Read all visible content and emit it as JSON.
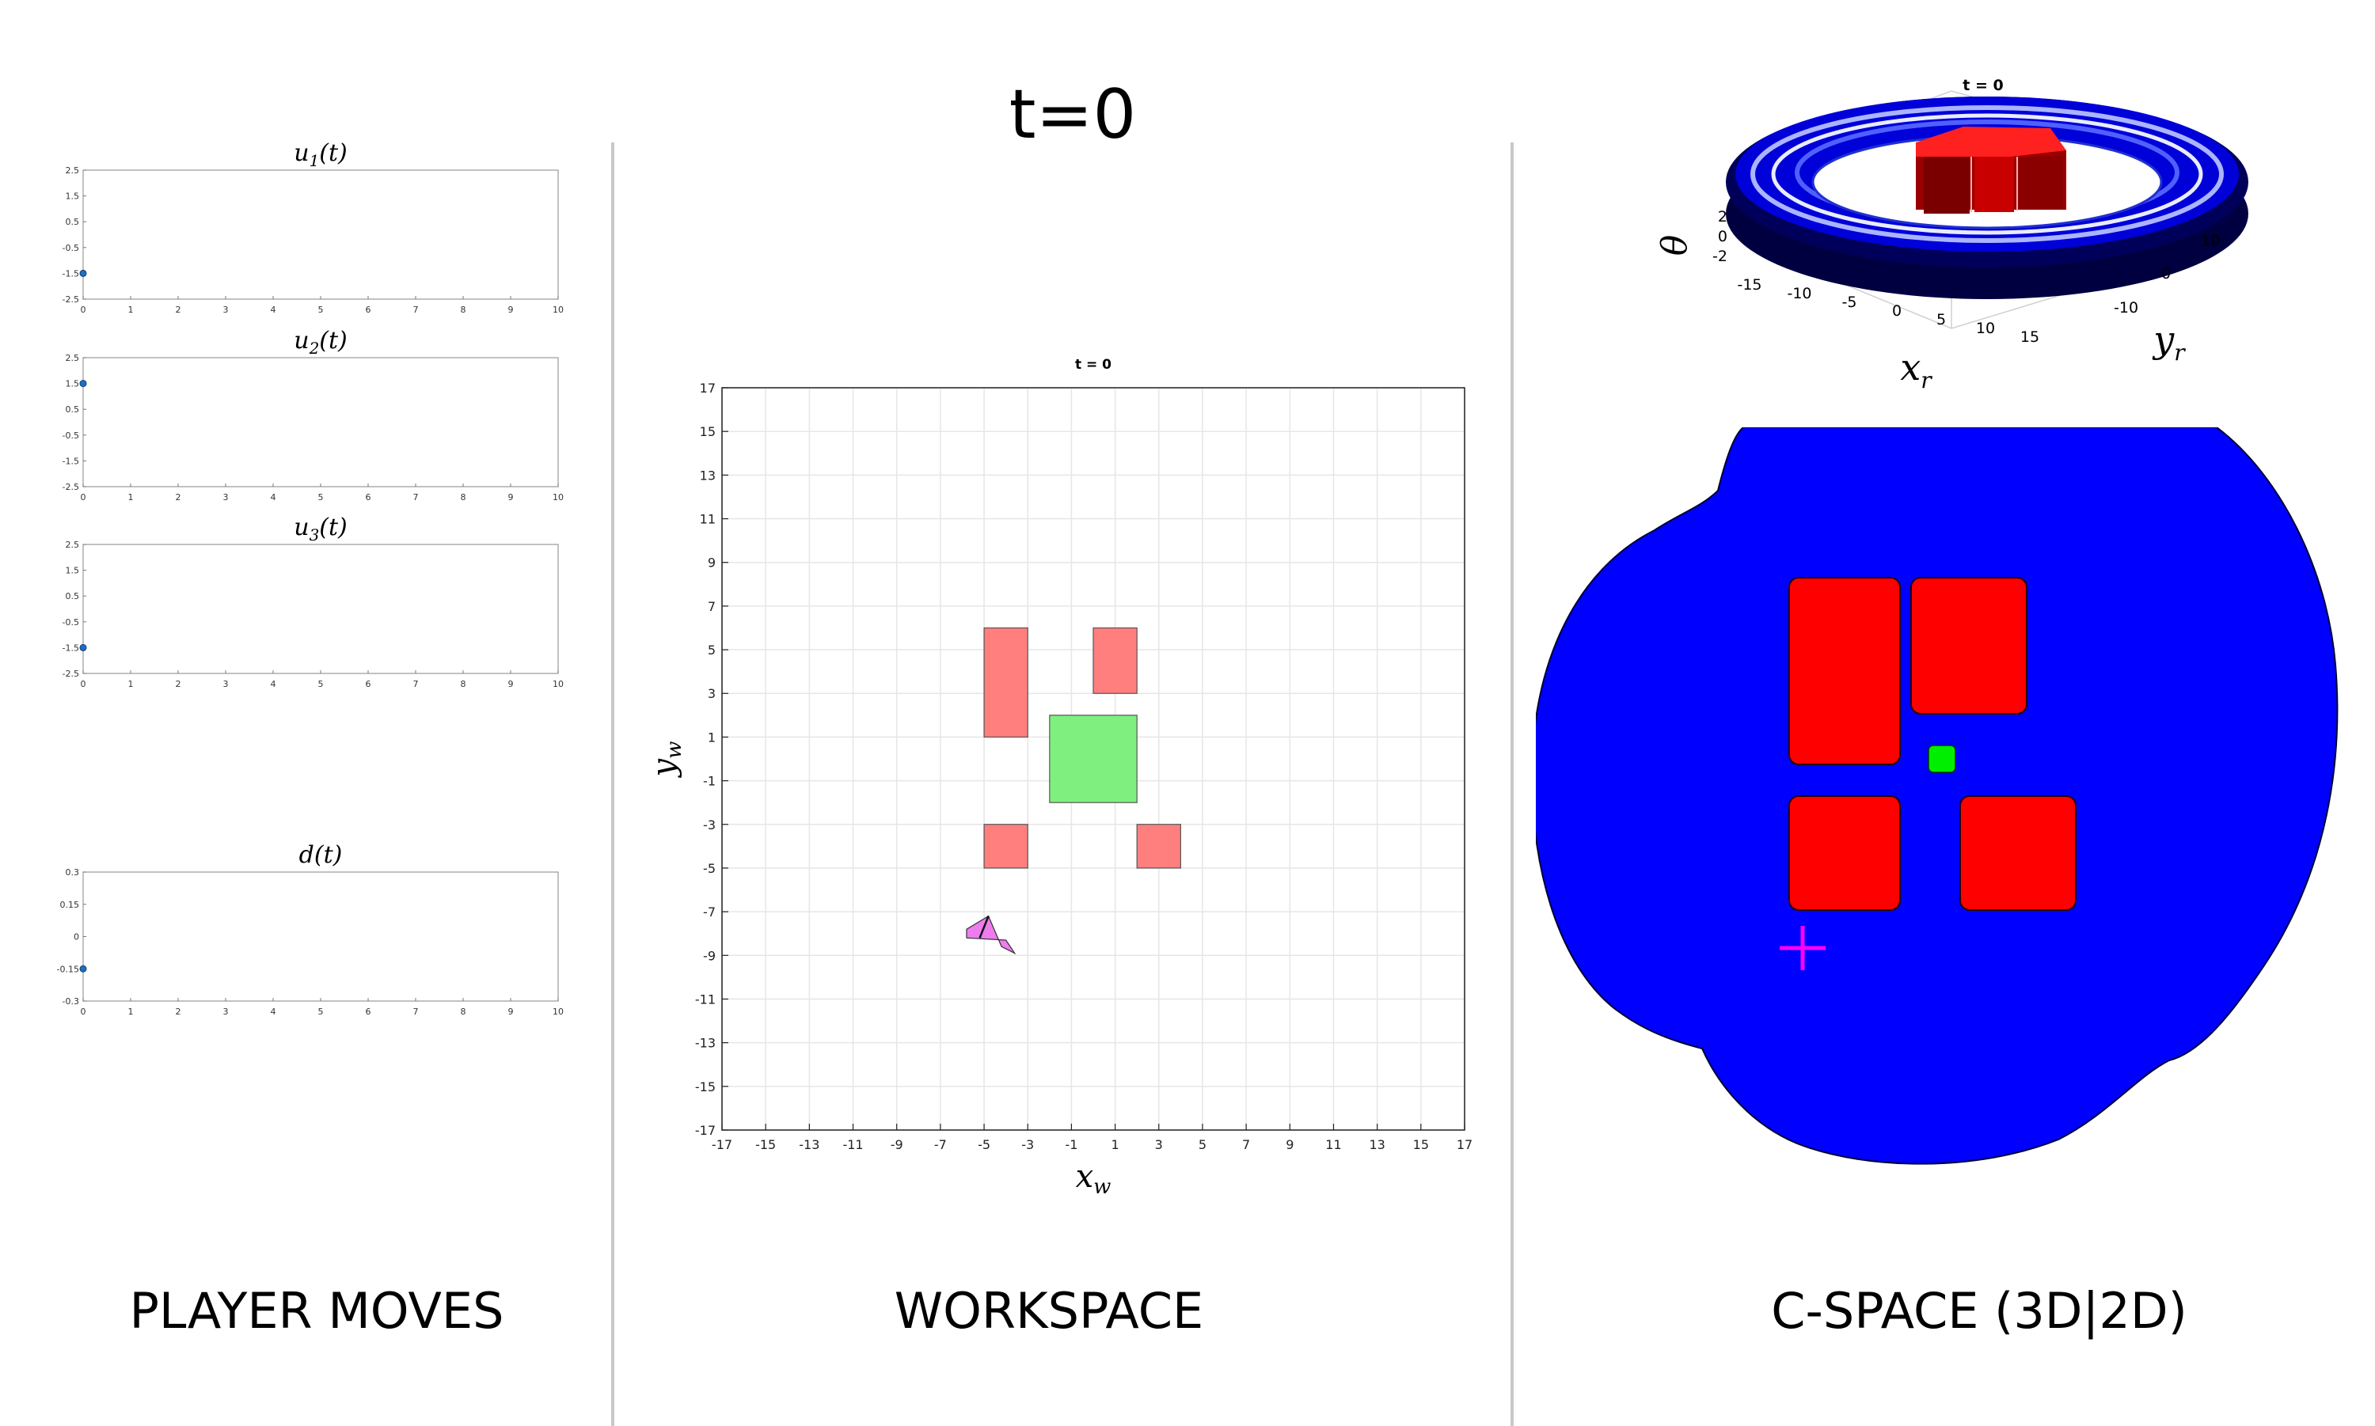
{
  "main_title": "t=0",
  "sections": {
    "player": "PLAYER MOVES",
    "workspace": "WORKSPACE",
    "cspace": "C-SPACE (3D|2D)"
  },
  "colors": {
    "obstacle_light": "#ff7f7f",
    "goal_light": "#7fef7f",
    "robot": "#ee7cee",
    "cspace_blue": "#0000ff",
    "cspace_red": "#ff0000",
    "cspace_goal": "#00ee00",
    "marker_magenta": "#ff00ff",
    "dark_navy": "#000040",
    "series_point": "#1f6fbf"
  },
  "chart_data": [
    {
      "type": "scatter",
      "title": "u1(t)",
      "title_base": "u",
      "title_sub": "1",
      "title_arg": "(t)",
      "x": [
        0
      ],
      "y": [
        -1.5
      ],
      "xlim": [
        0,
        10
      ],
      "ylim": [
        -2.5,
        2.5
      ],
      "xticks": [
        "0",
        "1",
        "2",
        "3",
        "4",
        "5",
        "6",
        "7",
        "8",
        "9",
        "10"
      ],
      "yticks": [
        "2.5",
        "1.5",
        "0.5",
        "-0.5",
        "-1.5",
        "-2.5"
      ],
      "ytick_values": [
        2.5,
        1.5,
        0.5,
        -0.5,
        -1.5,
        -2.5
      ]
    },
    {
      "type": "scatter",
      "title": "u2(t)",
      "title_base": "u",
      "title_sub": "2",
      "title_arg": "(t)",
      "x": [
        0
      ],
      "y": [
        1.5
      ],
      "xlim": [
        0,
        10
      ],
      "ylim": [
        -2.5,
        2.5
      ],
      "xticks": [
        "0",
        "1",
        "2",
        "3",
        "4",
        "5",
        "6",
        "7",
        "8",
        "9",
        "10"
      ],
      "yticks": [
        "2.5",
        "1.5",
        "0.5",
        "-0.5",
        "-1.5",
        "-2.5"
      ],
      "ytick_values": [
        2.5,
        1.5,
        0.5,
        -0.5,
        -1.5,
        -2.5
      ]
    },
    {
      "type": "scatter",
      "title": "u3(t)",
      "title_base": "u",
      "title_sub": "3",
      "title_arg": "(t)",
      "x": [
        0
      ],
      "y": [
        -1.5
      ],
      "xlim": [
        0,
        10
      ],
      "ylim": [
        -2.5,
        2.5
      ],
      "xticks": [
        "0",
        "1",
        "2",
        "3",
        "4",
        "5",
        "6",
        "7",
        "8",
        "9",
        "10"
      ],
      "yticks": [
        "2.5",
        "1.5",
        "0.5",
        "-0.5",
        "-1.5",
        "-2.5"
      ],
      "ytick_values": [
        2.5,
        1.5,
        0.5,
        -0.5,
        -1.5,
        -2.5
      ]
    },
    {
      "type": "scatter",
      "title": "d(t)",
      "title_base": "d",
      "title_sub": "",
      "title_arg": "(t)",
      "x": [
        0
      ],
      "y": [
        -0.15
      ],
      "xlim": [
        0,
        10
      ],
      "ylim": [
        -0.3,
        0.3
      ],
      "xticks": [
        "0",
        "1",
        "2",
        "3",
        "4",
        "5",
        "6",
        "7",
        "8",
        "9",
        "10"
      ],
      "yticks": [
        "0.3",
        "0.15",
        "0",
        "-0.15",
        "-0.3"
      ],
      "ytick_values": [
        0.3,
        0.15,
        0,
        -0.15,
        -0.3
      ]
    },
    {
      "type": "workspace",
      "title": "t = 0",
      "xlabel_base": "x",
      "xlabel_sub": "w",
      "ylabel_base": "y",
      "ylabel_sub": "w",
      "xlim": [
        -17,
        17
      ],
      "ylim": [
        -17,
        17
      ],
      "ticks": [
        -17,
        -15,
        -13,
        -11,
        -9,
        -7,
        -5,
        -3,
        -1,
        1,
        3,
        5,
        7,
        9,
        11,
        13,
        15,
        17
      ],
      "grid": true,
      "obstacles": [
        {
          "x": [
            -5,
            -3
          ],
          "y": [
            1,
            6
          ]
        },
        {
          "x": [
            0,
            2
          ],
          "y": [
            3,
            6
          ]
        },
        {
          "x": [
            -5,
            -3
          ],
          "y": [
            -5,
            -3
          ]
        },
        {
          "x": [
            2,
            4
          ],
          "y": [
            -5,
            -3
          ]
        }
      ],
      "goal": {
        "x": [
          -2,
          2
        ],
        "y": [
          -2,
          2
        ]
      },
      "robot": {
        "x": [
          -4.8,
          -4.2,
          -3.6,
          -4.0,
          -5.8,
          -5.8,
          -4.8
        ],
        "y": [
          -7.2,
          -8.6,
          -8.9,
          -8.3,
          -8.2,
          -7.8,
          -7.2
        ]
      }
    },
    {
      "type": "surface3d",
      "title": "t = 0",
      "xlabel_base": "x",
      "xlabel_sub": "r",
      "ylabel_base": "y",
      "ylabel_sub": "r",
      "zlabel": "θ",
      "xticks": [
        "-15",
        "-10",
        "-5",
        "0",
        "5",
        "10",
        "15"
      ],
      "yticks": [
        "10",
        "0",
        "-10"
      ],
      "zticks": [
        "2",
        "0",
        "-2"
      ]
    }
  ]
}
